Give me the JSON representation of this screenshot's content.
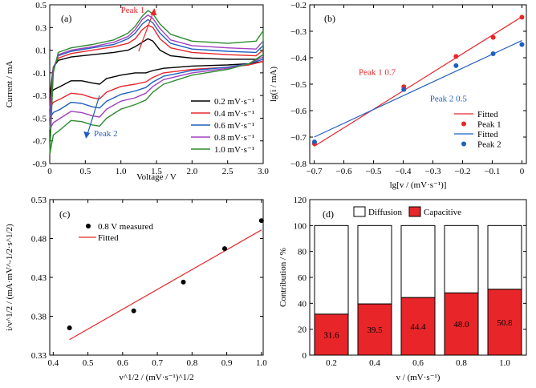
{
  "chart_data": [
    {
      "type": "line",
      "panel_label": "(a)",
      "xlabel": "Voltage / V",
      "ylabel": "Current / mA",
      "xlim": [
        0,
        3.0
      ],
      "ylim": [
        -0.9,
        0.5
      ],
      "xticks": [
        "0",
        "0.5",
        "1.0",
        "1.5",
        "2.0",
        "2.5",
        "3.0"
      ],
      "xtick_values": [
        0,
        0.5,
        1.0,
        1.5,
        2.0,
        2.5,
        3.0
      ],
      "yticks": [
        "0.5",
        "0.3",
        "0.1",
        "-0.1",
        "-0.3",
        "-0.5",
        "-0.7",
        "-0.9"
      ],
      "ytick_values": [
        0.5,
        0.3,
        0.1,
        -0.1,
        -0.3,
        -0.5,
        -0.7,
        -0.9
      ],
      "legend_position": "bottom-right",
      "annotations": [
        {
          "text": "Peak 1",
          "color": "#e8262a"
        },
        {
          "text": "Peak 2",
          "color": "#1f5fbf"
        }
      ],
      "series": [
        {
          "name": "0.2 mV·s⁻¹",
          "color": "#000000",
          "anodic": [
            [
              0,
              -0.32
            ],
            [
              0.05,
              -0.05
            ],
            [
              0.12,
              0.01
            ],
            [
              0.3,
              0.04
            ],
            [
              0.6,
              0.06
            ],
            [
              0.9,
              0.08
            ],
            [
              1.1,
              0.1
            ],
            [
              1.2,
              0.13
            ],
            [
              1.3,
              0.17
            ],
            [
              1.38,
              0.2
            ],
            [
              1.45,
              0.18
            ],
            [
              1.55,
              0.1
            ],
            [
              1.7,
              0.05
            ],
            [
              2.0,
              0.03
            ],
            [
              2.5,
              0.02
            ],
            [
              2.9,
              0.02
            ],
            [
              3.0,
              0.06
            ]
          ],
          "cathodic": [
            [
              3.0,
              0.0
            ],
            [
              2.8,
              -0.02
            ],
            [
              2.5,
              -0.03
            ],
            [
              2.0,
              -0.04
            ],
            [
              1.6,
              -0.06
            ],
            [
              1.45,
              -0.08
            ],
            [
              1.35,
              -0.1
            ],
            [
              1.2,
              -0.1
            ],
            [
              1.0,
              -0.12
            ],
            [
              0.8,
              -0.15
            ],
            [
              0.7,
              -0.2
            ],
            [
              0.6,
              -0.19
            ],
            [
              0.45,
              -0.17
            ],
            [
              0.3,
              -0.17
            ],
            [
              0.15,
              -0.22
            ],
            [
              0.05,
              -0.25
            ],
            [
              0,
              -0.32
            ]
          ]
        },
        {
          "name": "0.4 mV·s⁻¹",
          "color": "#e8262a",
          "anodic": [
            [
              0,
              -0.42
            ],
            [
              0.05,
              -0.05
            ],
            [
              0.12,
              0.03
            ],
            [
              0.3,
              0.07
            ],
            [
              0.6,
              0.1
            ],
            [
              0.9,
              0.13
            ],
            [
              1.1,
              0.16
            ],
            [
              1.2,
              0.2
            ],
            [
              1.3,
              0.28
            ],
            [
              1.38,
              0.32
            ],
            [
              1.45,
              0.3
            ],
            [
              1.55,
              0.2
            ],
            [
              1.7,
              0.12
            ],
            [
              2.0,
              0.08
            ],
            [
              2.5,
              0.06
            ],
            [
              2.9,
              0.05
            ],
            [
              3.0,
              0.1
            ]
          ],
          "cathodic": [
            [
              3.0,
              0.0
            ],
            [
              2.8,
              -0.03
            ],
            [
              2.5,
              -0.05
            ],
            [
              2.0,
              -0.07
            ],
            [
              1.6,
              -0.1
            ],
            [
              1.45,
              -0.14
            ],
            [
              1.35,
              -0.18
            ],
            [
              1.2,
              -0.2
            ],
            [
              1.0,
              -0.22
            ],
            [
              0.8,
              -0.27
            ],
            [
              0.7,
              -0.33
            ],
            [
              0.6,
              -0.32
            ],
            [
              0.45,
              -0.29
            ],
            [
              0.3,
              -0.28
            ],
            [
              0.15,
              -0.33
            ],
            [
              0.05,
              -0.36
            ],
            [
              0,
              -0.42
            ]
          ]
        },
        {
          "name": "0.6 mV·s⁻¹",
          "color": "#1f5fbf",
          "anodic": [
            [
              0,
              -0.5
            ],
            [
              0.05,
              -0.06
            ],
            [
              0.12,
              0.05
            ],
            [
              0.3,
              0.09
            ],
            [
              0.6,
              0.12
            ],
            [
              0.9,
              0.15
            ],
            [
              1.1,
              0.2
            ],
            [
              1.2,
              0.25
            ],
            [
              1.3,
              0.33
            ],
            [
              1.38,
              0.37
            ],
            [
              1.45,
              0.34
            ],
            [
              1.55,
              0.25
            ],
            [
              1.7,
              0.16
            ],
            [
              2.0,
              0.11
            ],
            [
              2.5,
              0.09
            ],
            [
              2.9,
              0.08
            ],
            [
              3.0,
              0.14
            ]
          ],
          "cathodic": [
            [
              3.0,
              0.02
            ],
            [
              2.8,
              -0.02
            ],
            [
              2.5,
              -0.05
            ],
            [
              2.0,
              -0.08
            ],
            [
              1.6,
              -0.13
            ],
            [
              1.45,
              -0.18
            ],
            [
              1.35,
              -0.23
            ],
            [
              1.2,
              -0.26
            ],
            [
              1.0,
              -0.29
            ],
            [
              0.8,
              -0.35
            ],
            [
              0.7,
              -0.41
            ],
            [
              0.6,
              -0.4
            ],
            [
              0.45,
              -0.37
            ],
            [
              0.3,
              -0.36
            ],
            [
              0.15,
              -0.42
            ],
            [
              0.05,
              -0.45
            ],
            [
              0,
              -0.5
            ]
          ]
        },
        {
          "name": "0.8 mV·s⁻¹",
          "color": "#a040c0",
          "anodic": [
            [
              0,
              -0.6
            ],
            [
              0.05,
              -0.08
            ],
            [
              0.12,
              0.06
            ],
            [
              0.3,
              0.1
            ],
            [
              0.6,
              0.13
            ],
            [
              0.9,
              0.17
            ],
            [
              1.1,
              0.22
            ],
            [
              1.2,
              0.28
            ],
            [
              1.3,
              0.37
            ],
            [
              1.38,
              0.41
            ],
            [
              1.45,
              0.38
            ],
            [
              1.55,
              0.29
            ],
            [
              1.7,
              0.19
            ],
            [
              2.0,
              0.14
            ],
            [
              2.5,
              0.12
            ],
            [
              2.9,
              0.11
            ],
            [
              3.0,
              0.18
            ]
          ],
          "cathodic": [
            [
              3.0,
              0.04
            ],
            [
              2.8,
              -0.02
            ],
            [
              2.5,
              -0.06
            ],
            [
              2.0,
              -0.1
            ],
            [
              1.6,
              -0.16
            ],
            [
              1.45,
              -0.22
            ],
            [
              1.35,
              -0.28
            ],
            [
              1.2,
              -0.32
            ],
            [
              1.0,
              -0.35
            ],
            [
              0.8,
              -0.42
            ],
            [
              0.7,
              -0.49
            ],
            [
              0.6,
              -0.48
            ],
            [
              0.45,
              -0.45
            ],
            [
              0.3,
              -0.44
            ],
            [
              0.15,
              -0.5
            ],
            [
              0.05,
              -0.54
            ],
            [
              0,
              -0.6
            ]
          ]
        },
        {
          "name": "1.0 mV·s⁻¹",
          "color": "#2e8b2e",
          "anodic": [
            [
              0,
              -0.82
            ],
            [
              0.05,
              -0.1
            ],
            [
              0.12,
              0.08
            ],
            [
              0.3,
              0.12
            ],
            [
              0.6,
              0.15
            ],
            [
              0.9,
              0.19
            ],
            [
              1.1,
              0.25
            ],
            [
              1.2,
              0.31
            ],
            [
              1.3,
              0.4
            ],
            [
              1.38,
              0.45
            ],
            [
              1.45,
              0.42
            ],
            [
              1.55,
              0.33
            ],
            [
              1.7,
              0.24
            ],
            [
              2.0,
              0.18
            ],
            [
              2.5,
              0.16
            ],
            [
              2.9,
              0.18
            ],
            [
              3.0,
              0.27
            ]
          ],
          "cathodic": [
            [
              3.0,
              0.06
            ],
            [
              2.8,
              -0.02
            ],
            [
              2.5,
              -0.07
            ],
            [
              2.0,
              -0.12
            ],
            [
              1.6,
              -0.2
            ],
            [
              1.45,
              -0.27
            ],
            [
              1.35,
              -0.34
            ],
            [
              1.2,
              -0.38
            ],
            [
              1.0,
              -0.42
            ],
            [
              0.8,
              -0.5
            ],
            [
              0.7,
              -0.57
            ],
            [
              0.6,
              -0.56
            ],
            [
              0.45,
              -0.53
            ],
            [
              0.3,
              -0.52
            ],
            [
              0.15,
              -0.6
            ],
            [
              0.05,
              -0.65
            ],
            [
              0,
              -0.82
            ]
          ]
        }
      ]
    },
    {
      "type": "scatter",
      "panel_label": "(b)",
      "xlabel": "lg[v / (mV·s⁻¹)]",
      "ylabel": "lg(i / mA)",
      "xlim": [
        -0.7,
        0.0
      ],
      "ylim": [
        -0.8,
        -0.2
      ],
      "xticks": [
        "−0.7",
        "−0.6",
        "−0.5",
        "−0.4",
        "−0.3",
        "−0.2",
        "−0.1",
        "0"
      ],
      "xtick_values": [
        -0.7,
        -0.6,
        -0.5,
        -0.4,
        -0.3,
        -0.2,
        -0.1,
        0.0
      ],
      "yticks": [
        "−0.2",
        "−0.3",
        "−0.4",
        "−0.5",
        "−0.6",
        "−0.7",
        "−0.8"
      ],
      "ytick_values": [
        -0.2,
        -0.3,
        -0.4,
        -0.5,
        -0.6,
        -0.7,
        -0.8
      ],
      "legend_position": "bottom-right",
      "annotations": [
        {
          "text": "Peak 1  0.7",
          "color": "#e8262a"
        },
        {
          "text": "Peak 2  0.5",
          "color": "#1f5fbf"
        }
      ],
      "series": [
        {
          "name": "Peak 1",
          "color": "#e8262a",
          "x": [
            -0.699,
            -0.398,
            -0.222,
            -0.097,
            0.0
          ],
          "y": [
            -0.725,
            -0.51,
            -0.395,
            -0.323,
            -0.247
          ]
        },
        {
          "name": "Peak 2",
          "color": "#1f5fbf",
          "x": [
            -0.699,
            -0.398,
            -0.222,
            -0.097,
            0.0
          ],
          "y": [
            -0.718,
            -0.52,
            -0.43,
            -0.385,
            -0.35
          ]
        }
      ],
      "fits": [
        {
          "name": "Fitted",
          "color": "#e8262a",
          "x": [
            -0.7,
            0.0
          ],
          "y": [
            -0.735,
            -0.245
          ]
        },
        {
          "name": "Fitted",
          "color": "#1f5fbf",
          "x": [
            -0.7,
            0.0
          ],
          "y": [
            -0.7,
            -0.335
          ]
        }
      ]
    },
    {
      "type": "scatter",
      "panel_label": "(c)",
      "xlabel": "v^1/2 / (mV·s⁻¹)^1/2",
      "ylabel": "i/v^1/2 / (mA·mV^-1/2·s^1/2)",
      "xlim": [
        0.4,
        1.0
      ],
      "ylim": [
        0.33,
        0.53
      ],
      "xticks": [
        "0.4",
        "0.5",
        "0.6",
        "0.7",
        "0.8",
        "0.9",
        "1.0"
      ],
      "xtick_values": [
        0.4,
        0.5,
        0.6,
        0.7,
        0.8,
        0.9,
        1.0
      ],
      "yticks": [
        "0.53",
        "0.48",
        "0.43",
        "0.38",
        "0.33"
      ],
      "ytick_values": [
        0.53,
        0.48,
        0.43,
        0.38,
        0.33
      ],
      "legend_position": "top-left",
      "series": [
        {
          "name": "0.8 V measured",
          "color": "#000000",
          "x": [
            0.447,
            0.632,
            0.775,
            0.894,
            1.0
          ],
          "y": [
            0.365,
            0.387,
            0.424,
            0.467,
            0.503
          ]
        }
      ],
      "fits": [
        {
          "name": "Fitted",
          "color": "#e8262a",
          "x": [
            0.447,
            1.0
          ],
          "y": [
            0.35,
            0.491
          ]
        }
      ]
    },
    {
      "type": "bar",
      "panel_label": "(d)",
      "xlabel": "v / (mV·s⁻¹)",
      "ylabel": "Contribution / %",
      "ylim": [
        0,
        120
      ],
      "yticks": [
        "120",
        "100",
        "80",
        "60",
        "40",
        "20",
        "0"
      ],
      "ytick_values": [
        120,
        100,
        80,
        60,
        40,
        20,
        0
      ],
      "categories": [
        "0.2",
        "0.4",
        "0.6",
        "0.8",
        "1.0"
      ],
      "stacked": true,
      "legend_position": "top",
      "series": [
        {
          "name": "Capacitive",
          "color": "#e8262a",
          "values": [
            31.6,
            39.5,
            44.4,
            48.0,
            50.8
          ]
        },
        {
          "name": "Diffusion",
          "color": "#ffffff",
          "values": [
            68.4,
            60.5,
            55.6,
            52.0,
            49.2
          ]
        }
      ],
      "data_labels": [
        "31.6",
        "39.5",
        "44.4",
        "48.0",
        "50.8"
      ]
    }
  ]
}
